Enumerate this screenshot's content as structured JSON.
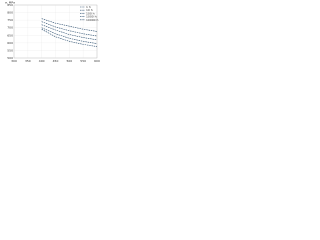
{
  "chart_data": {
    "type": "line",
    "y_label": "σ, MPa",
    "x": [
      400,
      450,
      500,
      550,
      600
    ],
    "series": [
      {
        "name": "1 h",
        "color": "#2a4d6e",
        "values": [
          760,
          730,
          710,
          690,
          675
        ]
      },
      {
        "name": "10 h",
        "color": "#2a4d6e",
        "values": [
          740,
          705,
          680,
          660,
          645
        ]
      },
      {
        "name": "100 h",
        "color": "#2a4d6e",
        "values": [
          720,
          685,
          655,
          635,
          620
        ]
      },
      {
        "name": "1000 h",
        "color": "#2a4d6e",
        "values": [
          700,
          660,
          630,
          610,
          595
        ]
      },
      {
        "name": "10000 h",
        "color": "#2a4d6e",
        "values": [
          690,
          640,
          610,
          590,
          575
        ]
      }
    ],
    "xlim": [
      300,
      600
    ],
    "xticks": [
      300,
      350,
      400,
      450,
      500,
      550,
      600
    ],
    "ylim": [
      500,
      850
    ],
    "yticks": [
      500,
      550,
      600,
      650,
      700,
      750,
      800,
      850
    ],
    "grid": true,
    "legend": "top-right"
  }
}
